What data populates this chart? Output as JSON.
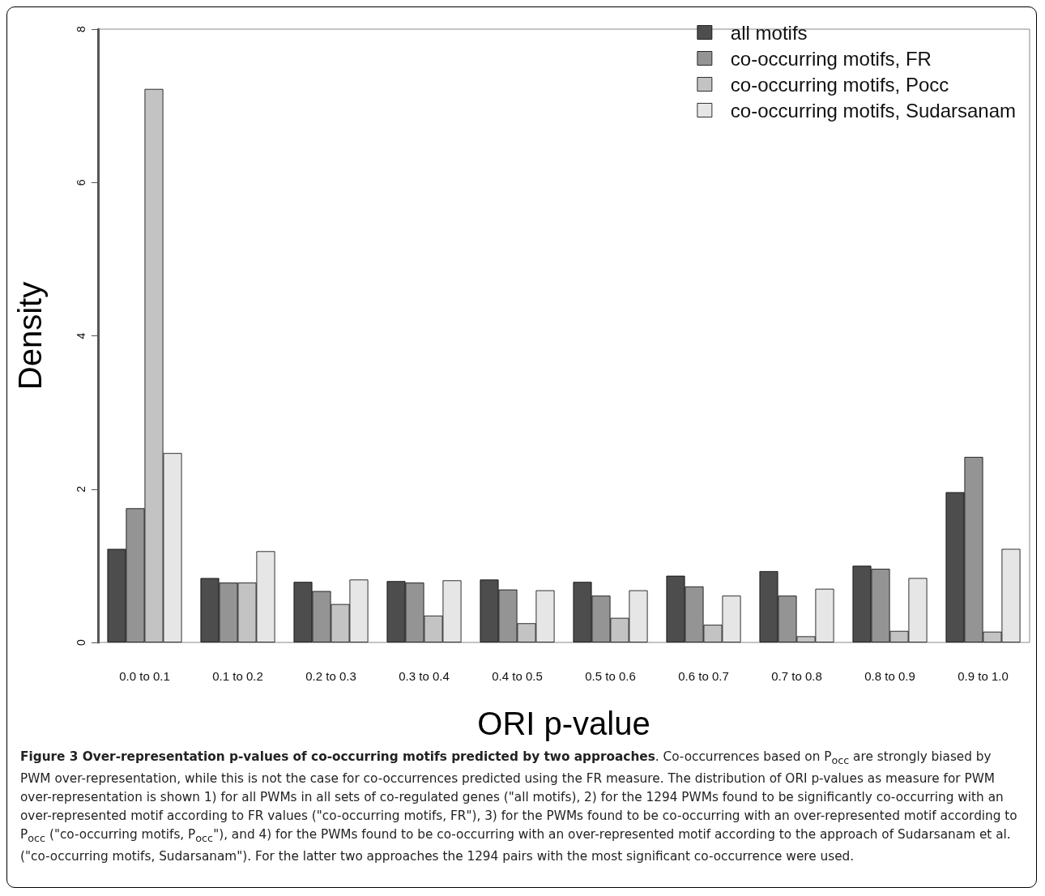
{
  "chart_data": {
    "type": "bar",
    "xlabel": "ORI p-value",
    "ylabel": "Density",
    "categories": [
      "0.0 to 0.1",
      "0.1 to 0.2",
      "0.2 to 0.3",
      "0.3 to 0.4",
      "0.4 to 0.5",
      "0.5 to 0.6",
      "0.6 to 0.7",
      "0.7 to 0.8",
      "0.8 to 0.9",
      "0.9 to 1.0"
    ],
    "series": [
      {
        "name": "all motifs",
        "color": "#4d4d4d",
        "values": [
          1.22,
          0.84,
          0.79,
          0.8,
          0.82,
          0.79,
          0.87,
          0.93,
          1.0,
          1.96
        ]
      },
      {
        "name": "co-occurring motifs, FR",
        "color": "#949494",
        "values": [
          1.75,
          0.78,
          0.67,
          0.78,
          0.69,
          0.61,
          0.73,
          0.61,
          0.96,
          2.42
        ]
      },
      {
        "name": "co-occurring motifs, Pocc",
        "color": "#c3c3c3",
        "values": [
          7.22,
          0.78,
          0.5,
          0.35,
          0.25,
          0.32,
          0.23,
          0.08,
          0.15,
          0.14
        ]
      },
      {
        "name": "co-occurring motifs, Sudarsanam",
        "color": "#e6e6e6",
        "values": [
          2.47,
          1.19,
          0.82,
          0.81,
          0.68,
          0.68,
          0.61,
          0.7,
          0.84,
          1.22
        ]
      }
    ],
    "ylim": [
      0,
      8
    ],
    "yticks": [
      0,
      2,
      4,
      6,
      8
    ],
    "grid": false,
    "legend": "top right",
    "annotations": [
      "Figure 3 Over-representation p-values of co-occurring motifs predicted by two approaches",
      ". Co-occurrences based on P$_{occ}$ are strongly biased by PWM over-representation, while this is not the case for co-occurrences predicted using the FR measure. The distribution of ORI p-values as measure for PWM over-representation is shown 1) for all PWMs in all sets of co-regulated genes (\"all motifs), 2) for the 1294 PWMs found to be significantly co-occurring with an over-represented motif according to FR values (\"co-occurring motifs, FR\"), 3) for the PWMs found to be co-occurring with an over-represented motif according to P$_{occ}$ (\"co-occurring motifs, P$_{occ}$\"), and 4) for the PWMs found to be co-occurring with an over-represented motif according to the approach of Sudarsanam et al. (\"co-occurring motifs, Sudarsanam\"). For the latter two approaches the 1294 pairs with the most significant co-occurrence were used."
    ]
  }
}
